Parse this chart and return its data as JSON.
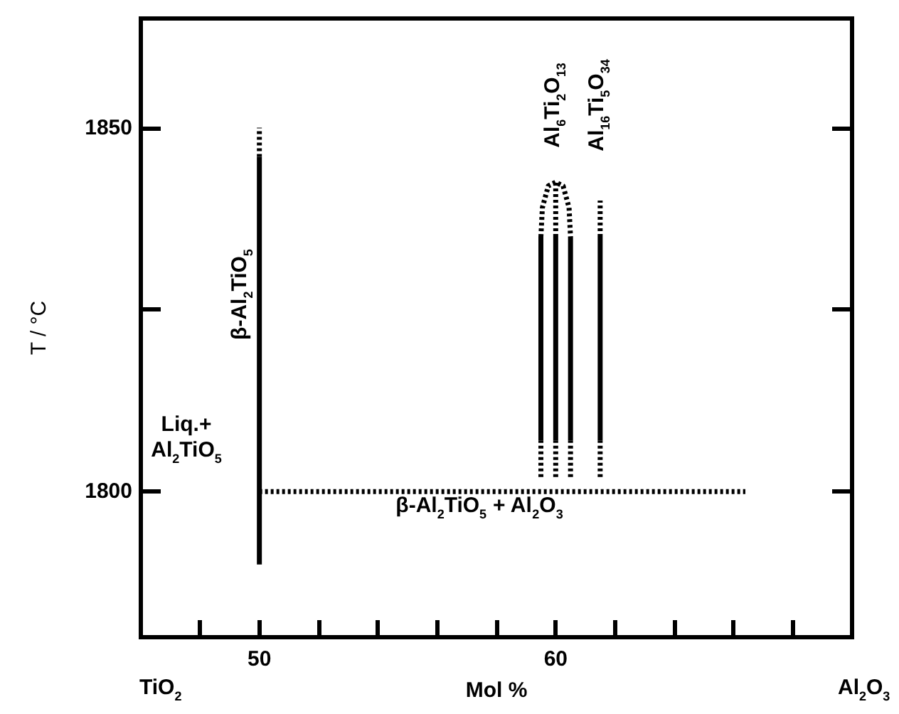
{
  "chart_data": {
    "type": "line",
    "xlabel": "Mol %",
    "ylabel": "T / °C",
    "xlim": [
      46,
      70
    ],
    "ylim": [
      1780,
      1865
    ],
    "xticks": [
      {
        "value": 48,
        "label": null
      },
      50,
      {
        "value": 52,
        "label": null
      },
      {
        "value": 54,
        "label": null
      },
      {
        "value": 56,
        "label": null
      },
      {
        "value": 58,
        "label": null
      },
      60,
      {
        "value": 62,
        "label": null
      },
      {
        "value": 64,
        "label": null
      },
      {
        "value": 66,
        "label": null
      },
      {
        "value": 68,
        "label": null
      }
    ],
    "yticks": [
      1800,
      {
        "value": 1825,
        "label": null
      },
      1850
    ],
    "marker": "none",
    "series": [
      {
        "x": [
          50,
          50
        ],
        "values": [
          1790,
          1846
        ],
        "color": "#000000",
        "line_style": "solid"
      },
      {
        "x": [
          50,
          50
        ],
        "values": [
          1846,
          1850
        ],
        "color": "#000000",
        "line_style": "dotted"
      },
      {
        "x": [
          50,
          66.4
        ],
        "values": [
          1800,
          1800
        ],
        "color": "#000000",
        "line_style": "dotted"
      },
      {
        "x": [
          59.5,
          59.5
        ],
        "values": [
          1807,
          1835
        ],
        "color": "#000000",
        "line_style": "solid"
      },
      {
        "x": [
          60,
          60
        ],
        "values": [
          1807,
          1835
        ],
        "color": "#000000",
        "line_style": "solid"
      },
      {
        "x": [
          60.5,
          60.5
        ],
        "values": [
          1807,
          1835
        ],
        "color": "#000000",
        "line_style": "solid"
      },
      {
        "x": [
          61.5,
          61.5
        ],
        "values": [
          1807,
          1835
        ],
        "color": "#000000",
        "line_style": "solid"
      },
      {
        "x": [
          59.5,
          59.5
        ],
        "values": [
          1802,
          1807
        ],
        "color": "#000000",
        "line_style": "dotted"
      },
      {
        "x": [
          60,
          60
        ],
        "values": [
          1802,
          1807
        ],
        "color": "#000000",
        "line_style": "dotted"
      },
      {
        "x": [
          60.5,
          60.5
        ],
        "values": [
          1802,
          1807
        ],
        "color": "#000000",
        "line_style": "dotted"
      },
      {
        "x": [
          61.5,
          61.5
        ],
        "values": [
          1802,
          1807
        ],
        "color": "#000000",
        "line_style": "dotted"
      },
      {
        "x": [
          59.5,
          59.55,
          59.75,
          60,
          60.25,
          60.45,
          60.5
        ],
        "values": [
          1835,
          1839,
          1842,
          1842.5,
          1842,
          1839,
          1835
        ],
        "color": "#000000",
        "line_style": "dotted"
      },
      {
        "x": [
          60,
          60
        ],
        "values": [
          1835,
          1842.5
        ],
        "color": "#000000",
        "line_style": "dotted"
      },
      {
        "x": [
          61.5,
          61.5
        ],
        "values": [
          1835,
          1840
        ],
        "color": "#000000",
        "line_style": "dotted"
      }
    ],
    "annotations": [
      "β-Al$_{2}$TiO$_{5}$",
      "Liq.+\nAl$_{2}$TiO$_{5}$",
      "β-Al$_{2}$TiO$_{5}$ + Al$_{2}$O$_{3}$",
      "Al$_{6}$Ti$_{2}$O$_{13}$",
      "Al$_{16}$Ti$_{5}$O$_{34}$",
      "TiO$_{2}$",
      "Al$_{2}$O$_{3}$"
    ]
  }
}
